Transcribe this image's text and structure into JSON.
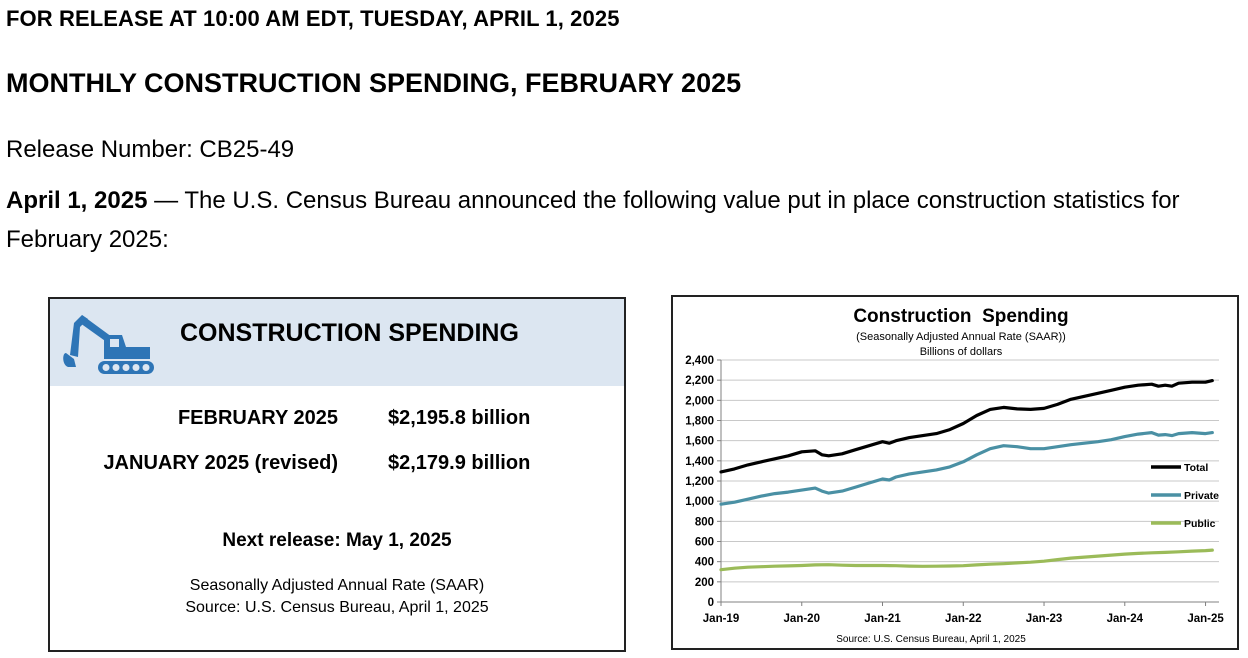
{
  "release_line": "FOR RELEASE AT 10:00 AM EDT, TUESDAY, APRIL 1, 2025",
  "headline": "MONTHLY CONSTRUCTION SPENDING, FEBRUARY 2025",
  "release_number": "Release Number: CB25-49",
  "lede": {
    "date": "April 1, 2025",
    "text": " — The U.S. Census Bureau announced the following value put in place construction statistics for February 2025:"
  },
  "summary": {
    "title": "CONSTRUCTION SPENDING",
    "icon": "excavator-icon",
    "rows": [
      {
        "label": "FEBRUARY 2025",
        "value": "$2,195.8 billion"
      },
      {
        "label": "JANUARY 2025 (revised)",
        "value": "$2,179.9 billion"
      }
    ],
    "next_release": "Next release: May 1, 2025",
    "saar_note": "Seasonally Adjusted Annual Rate (SAAR)",
    "source_note": "Source: U.S. Census Bureau, April 1, 2025",
    "header_color": "#dce6f1",
    "icon_color": "#2e75b6"
  },
  "chart_data": {
    "type": "line",
    "title": "Construction  Spending",
    "subtitle": "(Seasonally Adjusted Annual Rate (SAAR))",
    "subtitle2": "Billions of dollars",
    "source": "Source: U.S. Census Bureau, April 1, 2025",
    "ylim": [
      0,
      2400
    ],
    "yticks": [
      0,
      200,
      400,
      600,
      800,
      1000,
      1200,
      1400,
      1600,
      1800,
      2000,
      2200,
      2400
    ],
    "ytick_labels": [
      "0",
      "200",
      "400",
      "600",
      "800",
      "1,000",
      "1,200",
      "1,400",
      "1,600",
      "1,800",
      "2,000",
      "2,200",
      "2,400"
    ],
    "xlim": [
      "2019-01",
      "2025-03"
    ],
    "xticks": [
      "2019-01",
      "2020-01",
      "2021-01",
      "2022-01",
      "2023-01",
      "2024-01",
      "2025-01"
    ],
    "xtick_labels": [
      "Jan-19",
      "Jan-20",
      "Jan-21",
      "Jan-22",
      "Jan-23",
      "Jan-24",
      "Jan-25"
    ],
    "grid": true,
    "legend_position": "right",
    "series": [
      {
        "name": "Total",
        "color": "#000000",
        "points": [
          [
            "2019-01",
            1290
          ],
          [
            "2019-03",
            1320
          ],
          [
            "2019-05",
            1360
          ],
          [
            "2019-07",
            1390
          ],
          [
            "2019-09",
            1420
          ],
          [
            "2019-11",
            1450
          ],
          [
            "2020-01",
            1490
          ],
          [
            "2020-03",
            1500
          ],
          [
            "2020-04",
            1460
          ],
          [
            "2020-05",
            1450
          ],
          [
            "2020-07",
            1470
          ],
          [
            "2020-09",
            1510
          ],
          [
            "2020-11",
            1550
          ],
          [
            "2021-01",
            1590
          ],
          [
            "2021-02",
            1575
          ],
          [
            "2021-03",
            1600
          ],
          [
            "2021-05",
            1630
          ],
          [
            "2021-07",
            1650
          ],
          [
            "2021-09",
            1670
          ],
          [
            "2021-11",
            1710
          ],
          [
            "2022-01",
            1770
          ],
          [
            "2022-03",
            1850
          ],
          [
            "2022-05",
            1910
          ],
          [
            "2022-07",
            1930
          ],
          [
            "2022-09",
            1915
          ],
          [
            "2022-11",
            1910
          ],
          [
            "2023-01",
            1920
          ],
          [
            "2023-03",
            1960
          ],
          [
            "2023-05",
            2010
          ],
          [
            "2023-07",
            2040
          ],
          [
            "2023-09",
            2070
          ],
          [
            "2023-11",
            2100
          ],
          [
            "2024-01",
            2130
          ],
          [
            "2024-03",
            2150
          ],
          [
            "2024-05",
            2160
          ],
          [
            "2024-06",
            2140
          ],
          [
            "2024-07",
            2150
          ],
          [
            "2024-08",
            2140
          ],
          [
            "2024-09",
            2170
          ],
          [
            "2024-11",
            2180
          ],
          [
            "2025-01",
            2180
          ],
          [
            "2025-02",
            2196
          ]
        ]
      },
      {
        "name": "Private",
        "color": "#4a90a4",
        "points": [
          [
            "2019-01",
            970
          ],
          [
            "2019-03",
            990
          ],
          [
            "2019-05",
            1020
          ],
          [
            "2019-07",
            1050
          ],
          [
            "2019-09",
            1075
          ],
          [
            "2019-11",
            1090
          ],
          [
            "2020-01",
            1110
          ],
          [
            "2020-03",
            1130
          ],
          [
            "2020-04",
            1100
          ],
          [
            "2020-05",
            1080
          ],
          [
            "2020-07",
            1100
          ],
          [
            "2020-09",
            1140
          ],
          [
            "2020-11",
            1180
          ],
          [
            "2021-01",
            1220
          ],
          [
            "2021-02",
            1210
          ],
          [
            "2021-03",
            1240
          ],
          [
            "2021-05",
            1270
          ],
          [
            "2021-07",
            1290
          ],
          [
            "2021-09",
            1310
          ],
          [
            "2021-11",
            1340
          ],
          [
            "2022-01",
            1390
          ],
          [
            "2022-03",
            1460
          ],
          [
            "2022-05",
            1520
          ],
          [
            "2022-07",
            1550
          ],
          [
            "2022-09",
            1540
          ],
          [
            "2022-11",
            1520
          ],
          [
            "2023-01",
            1520
          ],
          [
            "2023-03",
            1540
          ],
          [
            "2023-05",
            1560
          ],
          [
            "2023-07",
            1575
          ],
          [
            "2023-09",
            1590
          ],
          [
            "2023-11",
            1610
          ],
          [
            "2024-01",
            1640
          ],
          [
            "2024-03",
            1665
          ],
          [
            "2024-05",
            1680
          ],
          [
            "2024-06",
            1655
          ],
          [
            "2024-07",
            1660
          ],
          [
            "2024-08",
            1650
          ],
          [
            "2024-09",
            1670
          ],
          [
            "2024-11",
            1680
          ],
          [
            "2025-01",
            1670
          ],
          [
            "2025-02",
            1680
          ]
        ]
      },
      {
        "name": "Public",
        "color": "#9bbb59",
        "points": [
          [
            "2019-01",
            320
          ],
          [
            "2019-03",
            335
          ],
          [
            "2019-05",
            345
          ],
          [
            "2019-07",
            350
          ],
          [
            "2019-09",
            355
          ],
          [
            "2019-11",
            358
          ],
          [
            "2020-01",
            362
          ],
          [
            "2020-03",
            368
          ],
          [
            "2020-05",
            370
          ],
          [
            "2020-07",
            365
          ],
          [
            "2020-09",
            362
          ],
          [
            "2020-11",
            362
          ],
          [
            "2021-01",
            362
          ],
          [
            "2021-03",
            360
          ],
          [
            "2021-05",
            356
          ],
          [
            "2021-07",
            354
          ],
          [
            "2021-09",
            355
          ],
          [
            "2021-11",
            357
          ],
          [
            "2022-01",
            360
          ],
          [
            "2022-03",
            368
          ],
          [
            "2022-05",
            375
          ],
          [
            "2022-07",
            380
          ],
          [
            "2022-09",
            388
          ],
          [
            "2022-11",
            395
          ],
          [
            "2023-01",
            405
          ],
          [
            "2023-03",
            420
          ],
          [
            "2023-05",
            435
          ],
          [
            "2023-07",
            445
          ],
          [
            "2023-09",
            455
          ],
          [
            "2023-11",
            465
          ],
          [
            "2024-01",
            475
          ],
          [
            "2024-03",
            482
          ],
          [
            "2024-05",
            488
          ],
          [
            "2024-07",
            492
          ],
          [
            "2024-09",
            498
          ],
          [
            "2024-11",
            505
          ],
          [
            "2025-01",
            510
          ],
          [
            "2025-02",
            515
          ]
        ]
      }
    ]
  }
}
